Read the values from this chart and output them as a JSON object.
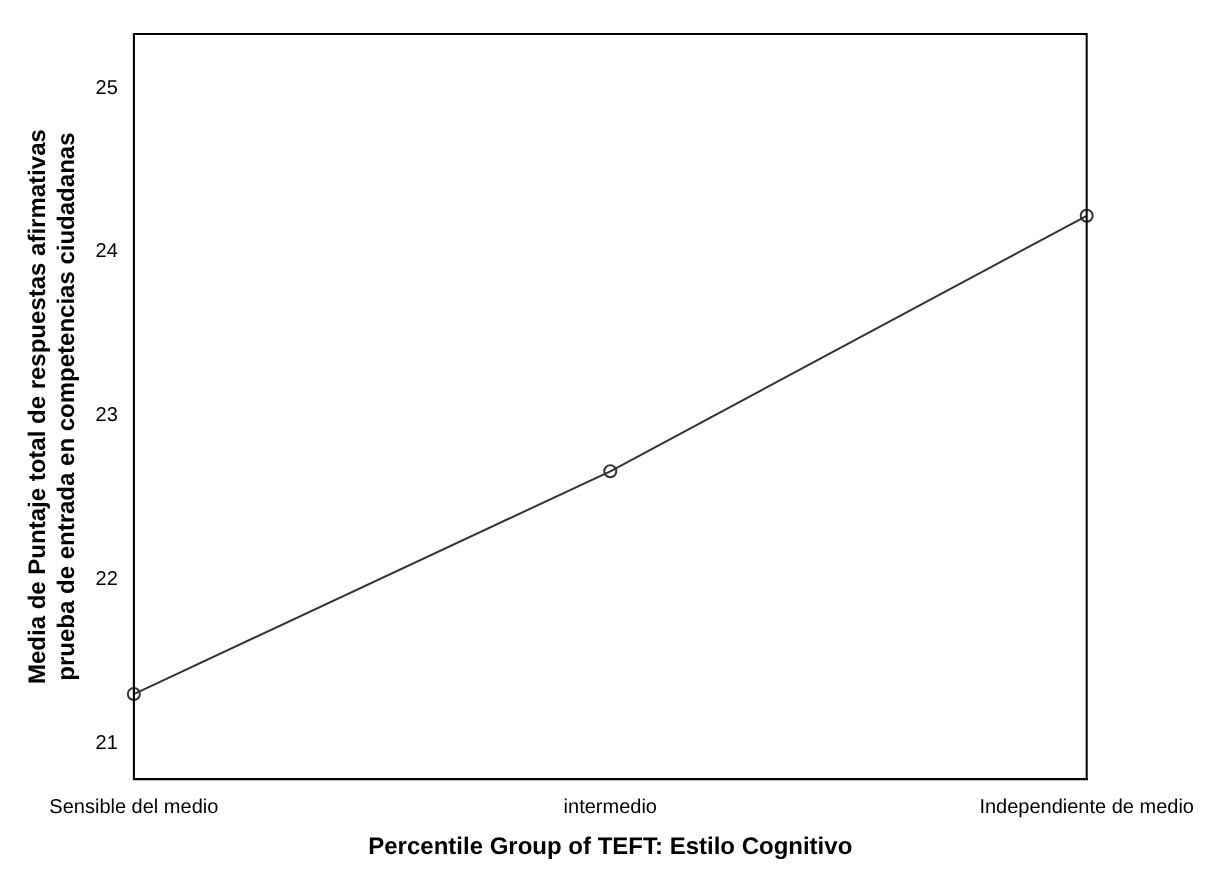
{
  "chart_data": {
    "type": "line",
    "xlabel": "Percentile Group of TEFT: Estilo Cognitivo",
    "ylabel": "Media de Puntaje total de respuestas afirmativas prueba de entrada en competencias ciudadanas",
    "categories": [
      "Sensible del medio",
      "intermedio",
      "Independiente de medio"
    ],
    "series": [
      {
        "color": "#333333",
        "values": [
          21.3,
          22.66,
          24.22
        ]
      }
    ],
    "ylim": [
      20.78,
      25.33
    ],
    "yticks": [
      21,
      22,
      23,
      24,
      25
    ],
    "grid": false,
    "legend": false,
    "marker": "circle",
    "line_style": "solid"
  }
}
